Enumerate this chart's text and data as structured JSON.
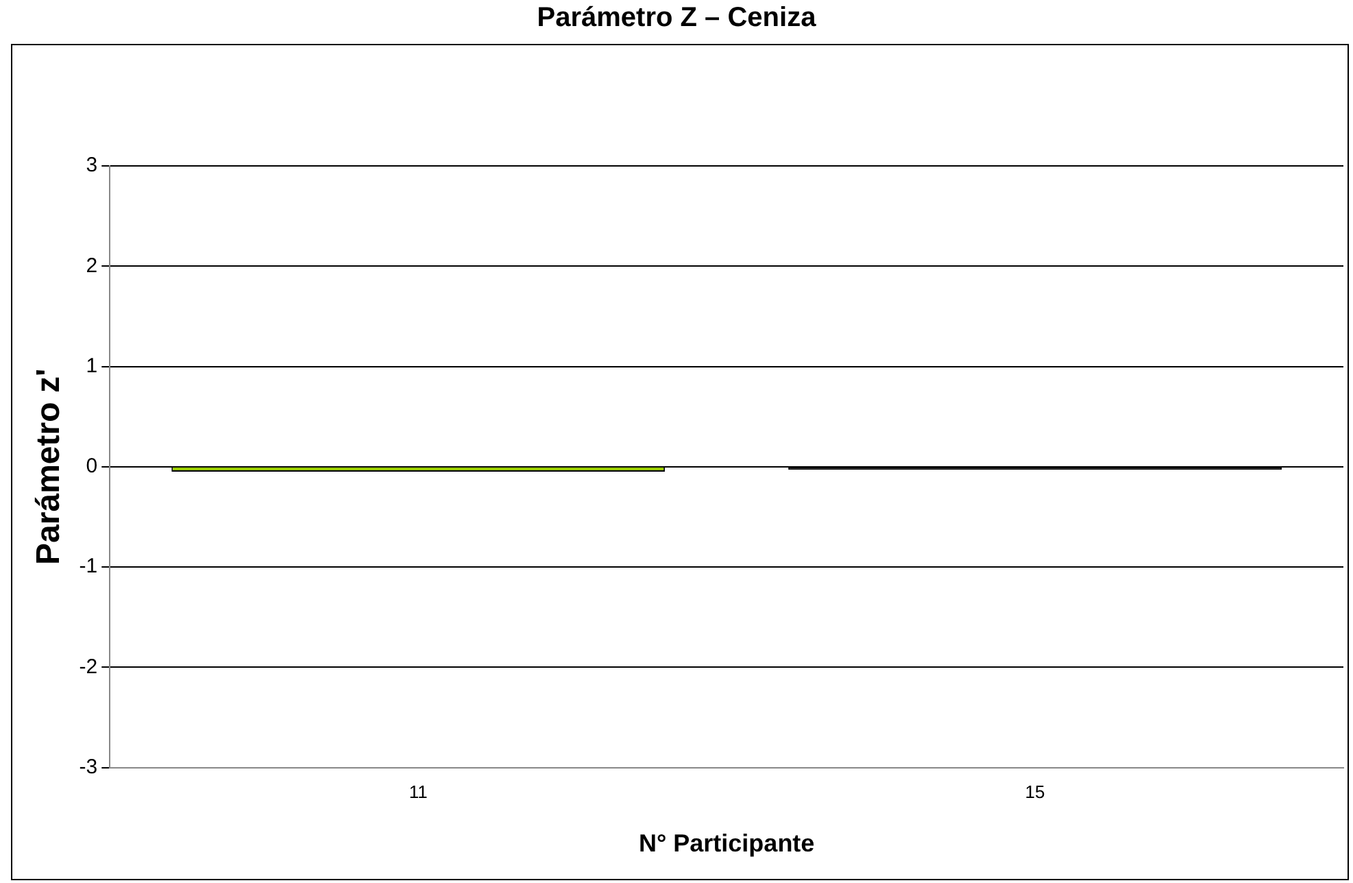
{
  "chart_data": {
    "type": "bar",
    "title": "Parámetro Z – Ceniza",
    "xlabel": "N° Participante",
    "ylabel": "Parámetro z'",
    "categories": [
      "11",
      "15"
    ],
    "colors": [
      "#99cc00",
      "#000000"
    ],
    "values": [
      -0.05,
      -0.03
    ],
    "ylim": [
      -3,
      3
    ],
    "yticks": [
      -3,
      -2,
      -1,
      0,
      1,
      2,
      3
    ],
    "grid": "y",
    "legend": false
  }
}
